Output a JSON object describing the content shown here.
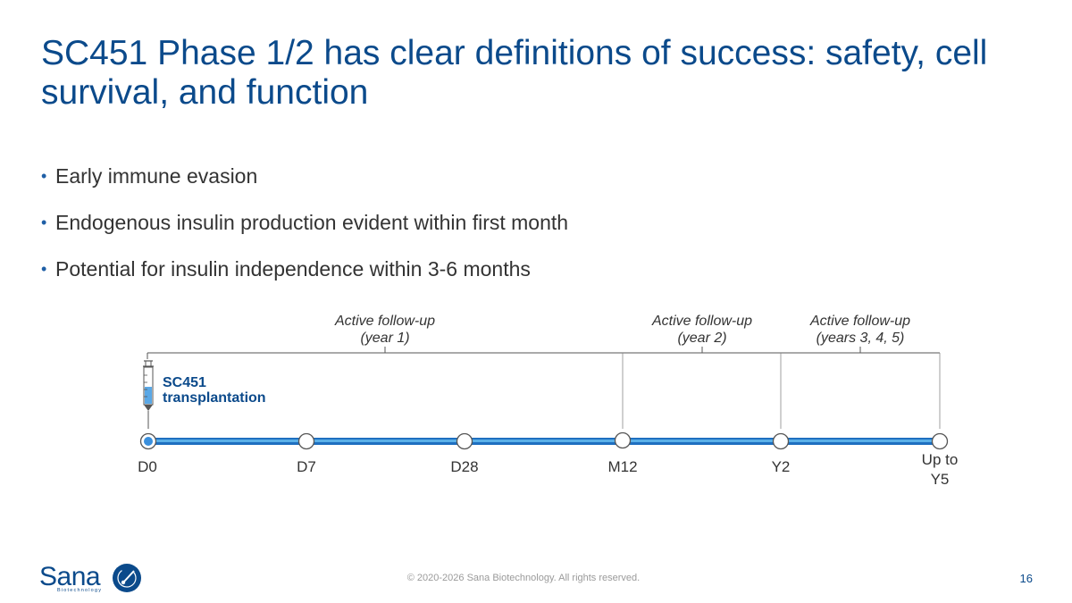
{
  "title": "SC451 Phase 1/2 has clear definitions of success: safety, cell survival, and function",
  "bullets": [
    "Early immune evasion",
    "Endogenous insulin production evident within first month",
    "Potential for insulin independence within 3-6 months"
  ],
  "timeline": {
    "milestones": [
      "D0",
      "D7",
      "D28",
      "M12",
      "Y2",
      "Up to",
      "Y5"
    ],
    "event_label_line1": "SC451",
    "event_label_line2": "transplantation",
    "followups": [
      {
        "line1": "Active follow-up",
        "line2": "(year 1)"
      },
      {
        "line1": "Active follow-up",
        "line2": "(year 2)"
      },
      {
        "line1": "Active follow-up",
        "line2": "(years 3, 4, 5)"
      }
    ]
  },
  "footer": {
    "copyright": "© 2020-2026 Sana Biotechnology. All rights reserved.",
    "page_number": "16",
    "logo_text": "Sana",
    "logo_subtext": "Biotechnology"
  },
  "colors": {
    "title": "#0b4a8b",
    "timeline_bar": "#1f6fc0",
    "timeline_bar_light": "#5ab0e8",
    "accent": "#0b4a8b"
  }
}
